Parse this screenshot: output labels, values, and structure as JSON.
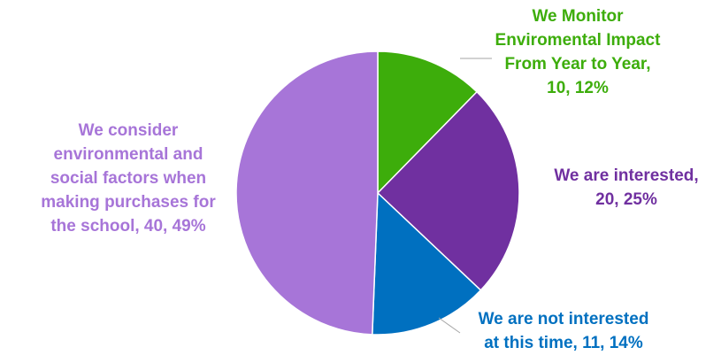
{
  "chart_data": {
    "type": "pie",
    "title": "",
    "start_angle_deg": 0,
    "direction": "clockwise",
    "slices": [
      {
        "name": "We Monitor Enviromental Impact From Year to Year",
        "value": 10,
        "percent": "12%",
        "color": "#3DAD0B",
        "label_lines": [
          "We Monitor",
          "Enviromental Impact",
          "From Year to Year,",
          "10, 12%"
        ]
      },
      {
        "name": "We are interested",
        "value": 20,
        "percent": "25%",
        "color": "#7030A0",
        "label_lines": [
          "We are interested,",
          "20, 25%"
        ]
      },
      {
        "name": "We are not interested at this time",
        "value": 11,
        "percent": "14%",
        "color": "#0070C0",
        "label_lines": [
          "We are not interested",
          "at this time, 11, 14%"
        ]
      },
      {
        "name": "We consider environmental and social factors when making purchases for the school",
        "value": 40,
        "percent": "49%",
        "color": "#A775D8",
        "label_lines": [
          "We consider",
          "environmental and",
          "social factors when",
          "making purchases for",
          "the school, 40, 49%"
        ]
      }
    ]
  }
}
